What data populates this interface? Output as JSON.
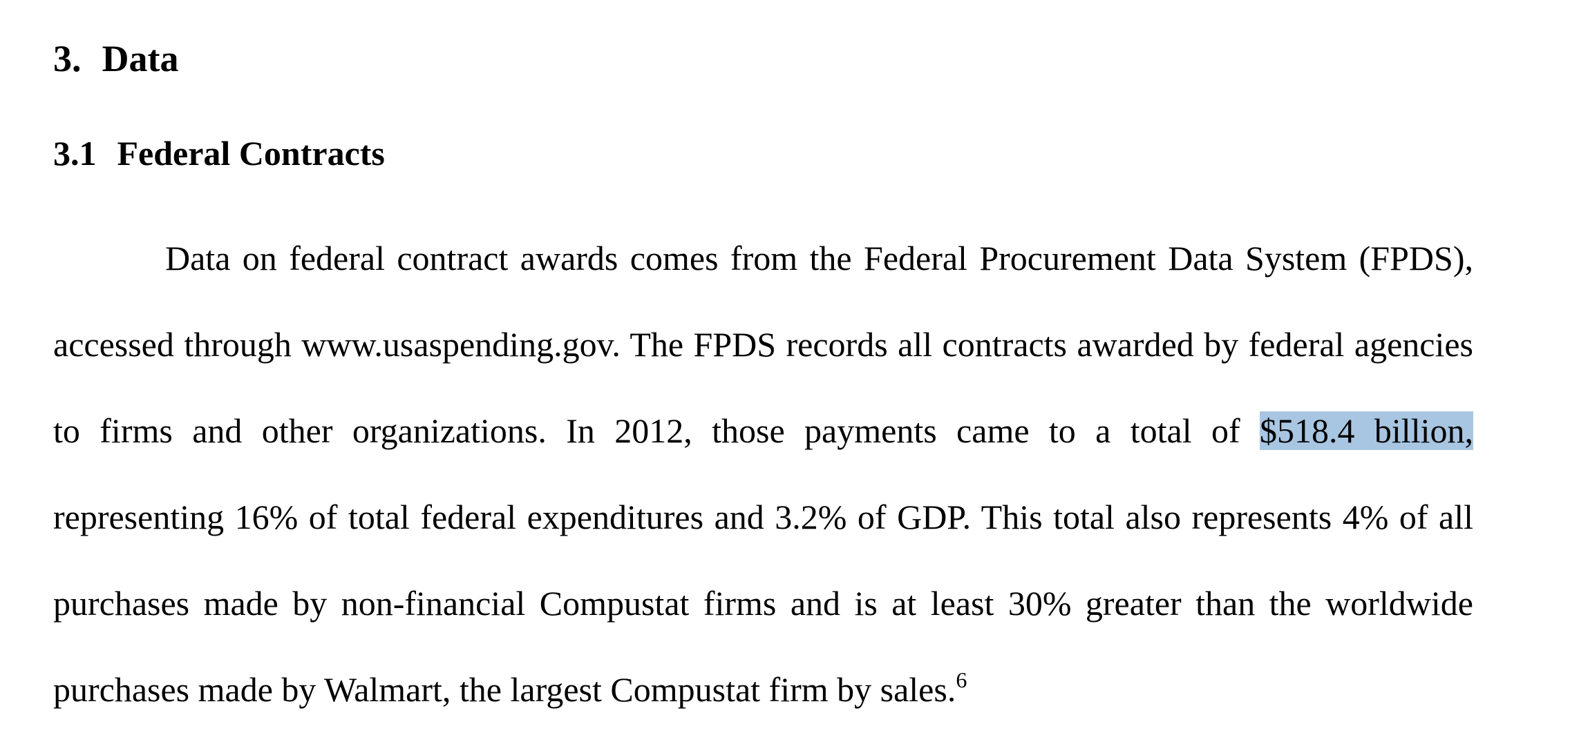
{
  "section": {
    "number": "3.",
    "title": "Data"
  },
  "subsection": {
    "number": "3.1",
    "title": "Federal Contracts"
  },
  "paragraph": {
    "text_before_highlight": "Data on federal contract awards comes from the Federal Procurement Data System (FPDS), accessed through www.usaspending.gov. The FPDS records all contracts awarded by federal agencies to firms and other organizations. In 2012, those payments came to a total of ",
    "highlighted_text": "$518.4 billion,",
    "text_after_highlight": " representing 16% of total federal expenditures and 3.2% of GDP. This total also represents 4% of all purchases made by non-financial Compustat firms and is at least 30% greater than the worldwide purchases made by Walmart, the largest Compustat firm by sales.",
    "footnote_marker": "6"
  },
  "colors": {
    "highlight": "#a8c6e2",
    "text": "#000000",
    "background": "#ffffff"
  }
}
